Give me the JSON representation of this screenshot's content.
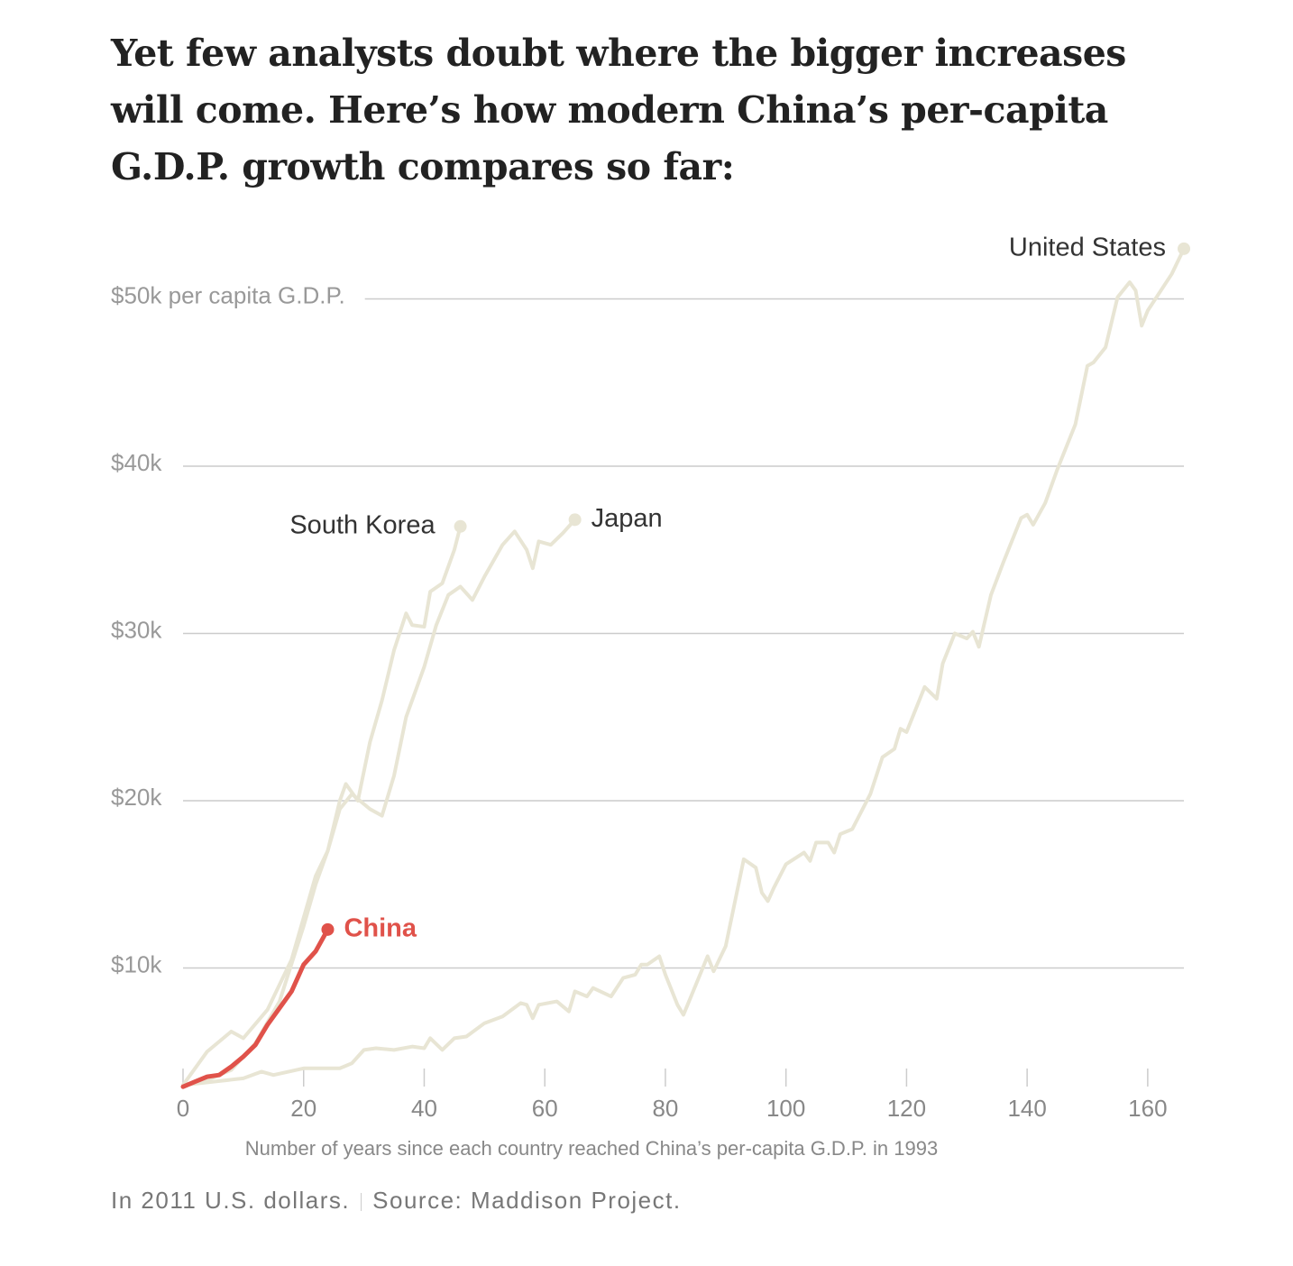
{
  "chart_data": {
    "type": "line",
    "title": "Yet few analysts doubt where the bigger increases will come. Here’s how modern China’s per-capita G.D.P. growth compares so far:",
    "x_label": "Number of years since each country reached China’s per-capita G.D.P. in 1993",
    "note": "In 2011 U.S. dollars.",
    "source": "Source: Maddison Project.",
    "xlim": [
      0,
      166
    ],
    "xticks": [
      0,
      20,
      40,
      60,
      80,
      100,
      120,
      140,
      160
    ],
    "ylim": [
      2500,
      53000
    ],
    "yticks": [
      {
        "value": 10000,
        "label": "$10k"
      },
      {
        "value": 20000,
        "label": "$20k"
      },
      {
        "value": 30000,
        "label": "$30k"
      },
      {
        "value": 40000,
        "label": "$40k"
      },
      {
        "value": 50000,
        "label": "$50k per capita G.D.P."
      }
    ],
    "grid": true,
    "series": [
      {
        "name": "United States",
        "color": "#e8e5d4",
        "x": [
          0,
          5,
          10,
          13,
          15,
          20,
          26,
          28,
          30,
          32,
          35,
          38,
          40,
          41,
          43,
          45,
          47,
          50,
          53,
          56,
          57,
          58,
          59,
          62,
          64,
          65,
          67,
          68,
          71,
          73,
          75,
          76,
          77,
          79,
          80,
          82,
          83,
          87,
          88,
          90,
          93,
          95,
          96,
          97,
          98,
          100,
          103,
          104,
          105,
          107,
          108,
          109,
          111,
          114,
          116,
          118,
          119,
          120,
          121,
          123,
          125,
          126,
          128,
          130,
          131,
          132,
          134,
          136,
          139,
          140,
          141,
          143,
          145,
          148,
          150,
          151,
          153,
          155,
          157,
          158,
          159,
          160,
          162,
          164,
          166
        ],
        "values": [
          3000,
          3200,
          3400,
          3800,
          3600,
          4000,
          4000,
          4300,
          5100,
          5200,
          5100,
          5300,
          5200,
          5800,
          5100,
          5800,
          5900,
          6700,
          7100,
          7900,
          7800,
          7000,
          7800,
          8000,
          7400,
          8600,
          8300,
          8800,
          8300,
          9400,
          9600,
          10200,
          10200,
          10700,
          9600,
          7800,
          7200,
          10700,
          9800,
          11300,
          16500,
          16000,
          14500,
          14000,
          14800,
          16200,
          16900,
          16400,
          17500,
          17500,
          16900,
          18000,
          18300,
          20400,
          22600,
          23100,
          24300,
          24100,
          25000,
          26800,
          26100,
          28200,
          30000,
          29700,
          30100,
          29200,
          32300,
          34200,
          36900,
          37100,
          36500,
          37800,
          39800,
          42500,
          46000,
          46200,
          47100,
          50100,
          51000,
          50500,
          48400,
          49300,
          50400,
          51500,
          53000
        ]
      },
      {
        "name": "Japan",
        "color": "#e8e5d4",
        "x": [
          0,
          4,
          8,
          10,
          14,
          18,
          20,
          22,
          24,
          26,
          28,
          31,
          33,
          35,
          37,
          40,
          42,
          44,
          46,
          48,
          50,
          53,
          55,
          57,
          58,
          59,
          61,
          63,
          65
        ],
        "values": [
          3000,
          5000,
          6200,
          5800,
          7500,
          10500,
          13000,
          15500,
          17000,
          19500,
          20400,
          19500,
          19100,
          21500,
          25000,
          28000,
          30500,
          32300,
          32800,
          32000,
          33400,
          35300,
          36100,
          35000,
          33900,
          35500,
          35300,
          36000,
          36800
        ]
      },
      {
        "name": "South Korea",
        "color": "#e8e5d4",
        "x": [
          0,
          4,
          8,
          12,
          16,
          20,
          22,
          24,
          26,
          27,
          29,
          31,
          33,
          35,
          37,
          38,
          40,
          41,
          43,
          45,
          46
        ],
        "values": [
          3000,
          3300,
          3900,
          5500,
          8000,
          12500,
          15000,
          17000,
          20000,
          21000,
          20000,
          23500,
          26000,
          29000,
          31200,
          30500,
          30400,
          32500,
          33000,
          35000,
          36400
        ]
      },
      {
        "name": "China",
        "color": "#e0524a",
        "x": [
          0,
          2,
          4,
          6,
          8,
          10,
          12,
          14,
          16,
          18,
          20,
          22,
          24
        ],
        "values": [
          2900,
          3200,
          3500,
          3600,
          4100,
          4700,
          5400,
          6600,
          7600,
          8600,
          10200,
          11000,
          12300
        ]
      }
    ]
  }
}
